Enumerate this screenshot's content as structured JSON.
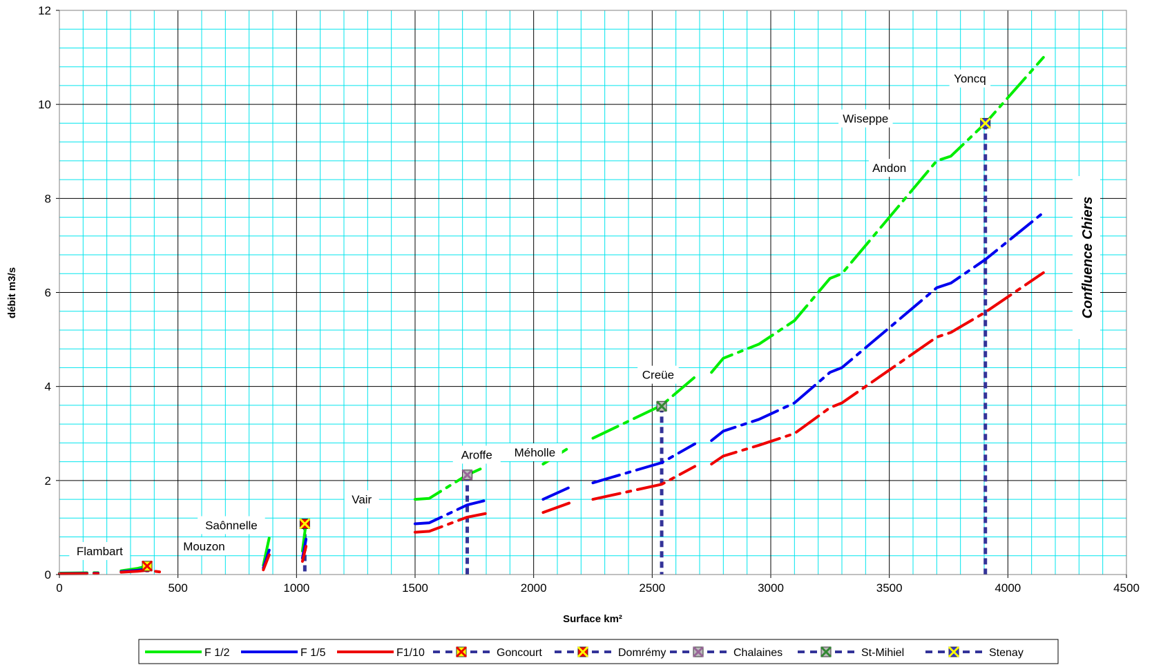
{
  "chart_data": {
    "type": "line",
    "xlabel": "Surface km²",
    "ylabel": "débit m3/s",
    "xlim": [
      0,
      4500
    ],
    "ylim": [
      0,
      12
    ],
    "x_ticks": [
      0,
      500,
      1000,
      1500,
      2000,
      2500,
      3000,
      3500,
      4000,
      4500
    ],
    "y_ticks": [
      0,
      2,
      4,
      6,
      8,
      10,
      12
    ],
    "x_tick_labels": [
      "0",
      "500",
      "1000",
      "1500",
      "2000",
      "2500",
      "3000",
      "3500",
      "4000",
      "4500"
    ],
    "y_tick_labels": [
      "0",
      "2",
      "4",
      "6",
      "8",
      "10",
      "12"
    ],
    "grid": true,
    "minor_grid": {
      "x_step": 100,
      "y_step": 0.4
    },
    "colors": {
      "plot_bg": "#ffffff",
      "major_grid": "#000000",
      "minor_grid": "#00e5ee",
      "f12": "#00ee00",
      "f15": "#0000ee",
      "f110": "#ee0000",
      "station": "#333399"
    },
    "series": [
      {
        "name": "F 1/2",
        "color": "#00ee00",
        "segments": [
          [
            [
              0,
              0.03
            ],
            [
              170,
              0.04
            ]
          ],
          [
            [
              260,
              0.08
            ],
            [
              330,
              0.13
            ],
            [
              370,
              0.18
            ],
            [
              400,
              0.15
            ]
          ],
          [
            [
              860,
              0.2
            ],
            [
              885,
              0.78
            ]
          ],
          [
            [
              1025,
              0.5
            ],
            [
              1040,
              1.1
            ]
          ],
          [
            [
              1500,
              1.6
            ],
            [
              1560,
              1.62
            ],
            [
              1720,
              2.12
            ],
            [
              1800,
              2.3
            ]
          ],
          [
            [
              2040,
              2.35
            ],
            [
              2150,
              2.7
            ]
          ],
          [
            [
              2250,
              2.9
            ],
            [
              2540,
              3.6
            ],
            [
              2680,
              4.2
            ]
          ],
          [
            [
              2750,
              4.3
            ],
            [
              2800,
              4.6
            ],
            [
              2950,
              4.9
            ],
            [
              3100,
              5.4
            ],
            [
              3250,
              6.3
            ],
            [
              3300,
              6.4
            ],
            [
              3500,
              7.6
            ],
            [
              3700,
              8.8
            ],
            [
              3760,
              8.9
            ],
            [
              3905,
              9.6
            ],
            [
              4150,
              11.0
            ]
          ]
        ]
      },
      {
        "name": "F 1/5",
        "color": "#0000ee",
        "segments": [
          [
            [
              0,
              0.02
            ],
            [
              170,
              0.03
            ]
          ],
          [
            [
              260,
              0.06
            ],
            [
              330,
              0.09
            ],
            [
              370,
              0.12
            ],
            [
              400,
              0.1
            ]
          ],
          [
            [
              860,
              0.14
            ],
            [
              885,
              0.52
            ]
          ],
          [
            [
              1025,
              0.35
            ],
            [
              1040,
              0.75
            ]
          ],
          [
            [
              1500,
              1.08
            ],
            [
              1560,
              1.1
            ],
            [
              1720,
              1.48
            ],
            [
              1800,
              1.58
            ]
          ],
          [
            [
              2040,
              1.6
            ],
            [
              2150,
              1.85
            ]
          ],
          [
            [
              2250,
              1.95
            ],
            [
              2540,
              2.38
            ],
            [
              2680,
              2.78
            ]
          ],
          [
            [
              2750,
              2.85
            ],
            [
              2800,
              3.05
            ],
            [
              2950,
              3.3
            ],
            [
              3100,
              3.65
            ],
            [
              3250,
              4.3
            ],
            [
              3300,
              4.4
            ],
            [
              3500,
              5.25
            ],
            [
              3700,
              6.1
            ],
            [
              3760,
              6.2
            ],
            [
              3905,
              6.7
            ],
            [
              4150,
              7.7
            ]
          ]
        ]
      },
      {
        "name": "F1/10",
        "color": "#ee0000",
        "segments": [
          [
            [
              0,
              0.015
            ],
            [
              170,
              0.02
            ]
          ],
          [
            [
              260,
              0.05
            ],
            [
              330,
              0.07
            ],
            [
              370,
              0.09
            ],
            [
              400,
              0.07
            ],
            [
              450,
              0.04
            ]
          ],
          [
            [
              860,
              0.1
            ],
            [
              885,
              0.42
            ]
          ],
          [
            [
              1025,
              0.28
            ],
            [
              1040,
              0.6
            ]
          ],
          [
            [
              1500,
              0.9
            ],
            [
              1560,
              0.92
            ],
            [
              1720,
              1.22
            ],
            [
              1800,
              1.3
            ]
          ],
          [
            [
              2040,
              1.32
            ],
            [
              2150,
              1.52
            ]
          ],
          [
            [
              2250,
              1.6
            ],
            [
              2540,
              1.92
            ],
            [
              2680,
              2.3
            ]
          ],
          [
            [
              2750,
              2.35
            ],
            [
              2800,
              2.52
            ],
            [
              2950,
              2.75
            ],
            [
              3100,
              3.0
            ],
            [
              3250,
              3.55
            ],
            [
              3300,
              3.65
            ],
            [
              3500,
              4.35
            ],
            [
              3700,
              5.05
            ],
            [
              3760,
              5.15
            ],
            [
              3905,
              5.58
            ],
            [
              4150,
              6.42
            ]
          ]
        ]
      }
    ],
    "stations": [
      {
        "name": "Goncourt",
        "x": 370,
        "y": 0.18,
        "fill": "#ffff00",
        "mark": "#ee0000"
      },
      {
        "name": "Domrémy",
        "x": 1035,
        "y": 1.08,
        "fill": "#ee0000",
        "mark": "#ffff00"
      },
      {
        "name": "Chalaines",
        "x": 1720,
        "y": 2.12,
        "fill": "#bbbbbb",
        "mark": "#996699"
      },
      {
        "name": "St-Mihiel",
        "x": 2540,
        "y": 3.58,
        "fill": "#bbbbbb",
        "mark": "#338833"
      },
      {
        "name": "Stenay",
        "x": 3905,
        "y": 9.6,
        "fill": "#3333cc",
        "mark": "#ffff00"
      }
    ],
    "annotations": [
      {
        "text": "Flambart",
        "x": 170,
        "y": 0.5
      },
      {
        "text": "Mouzon",
        "x": 610,
        "y": 0.6
      },
      {
        "text": "Saônnelle",
        "x": 725,
        "y": 1.05
      },
      {
        "text": "Vair",
        "x": 1275,
        "y": 1.6
      },
      {
        "text": "Aroffe",
        "x": 1760,
        "y": 2.55
      },
      {
        "text": "Méholle",
        "x": 2005,
        "y": 2.6
      },
      {
        "text": "Creüe",
        "x": 2525,
        "y": 4.25
      },
      {
        "text": "Andon",
        "x": 3500,
        "y": 8.65
      },
      {
        "text": "Wiseppe",
        "x": 3400,
        "y": 9.7
      },
      {
        "text": "Yoncq",
        "x": 3840,
        "y": 10.55
      }
    ],
    "side_note": "Confluence Chiers",
    "legend_placement": "bottom",
    "legend": [
      "F 1/2",
      "F 1/5",
      "F1/10",
      "Goncourt",
      "Domrémy",
      "Chalaines",
      "St-Mihiel",
      "Stenay"
    ]
  }
}
